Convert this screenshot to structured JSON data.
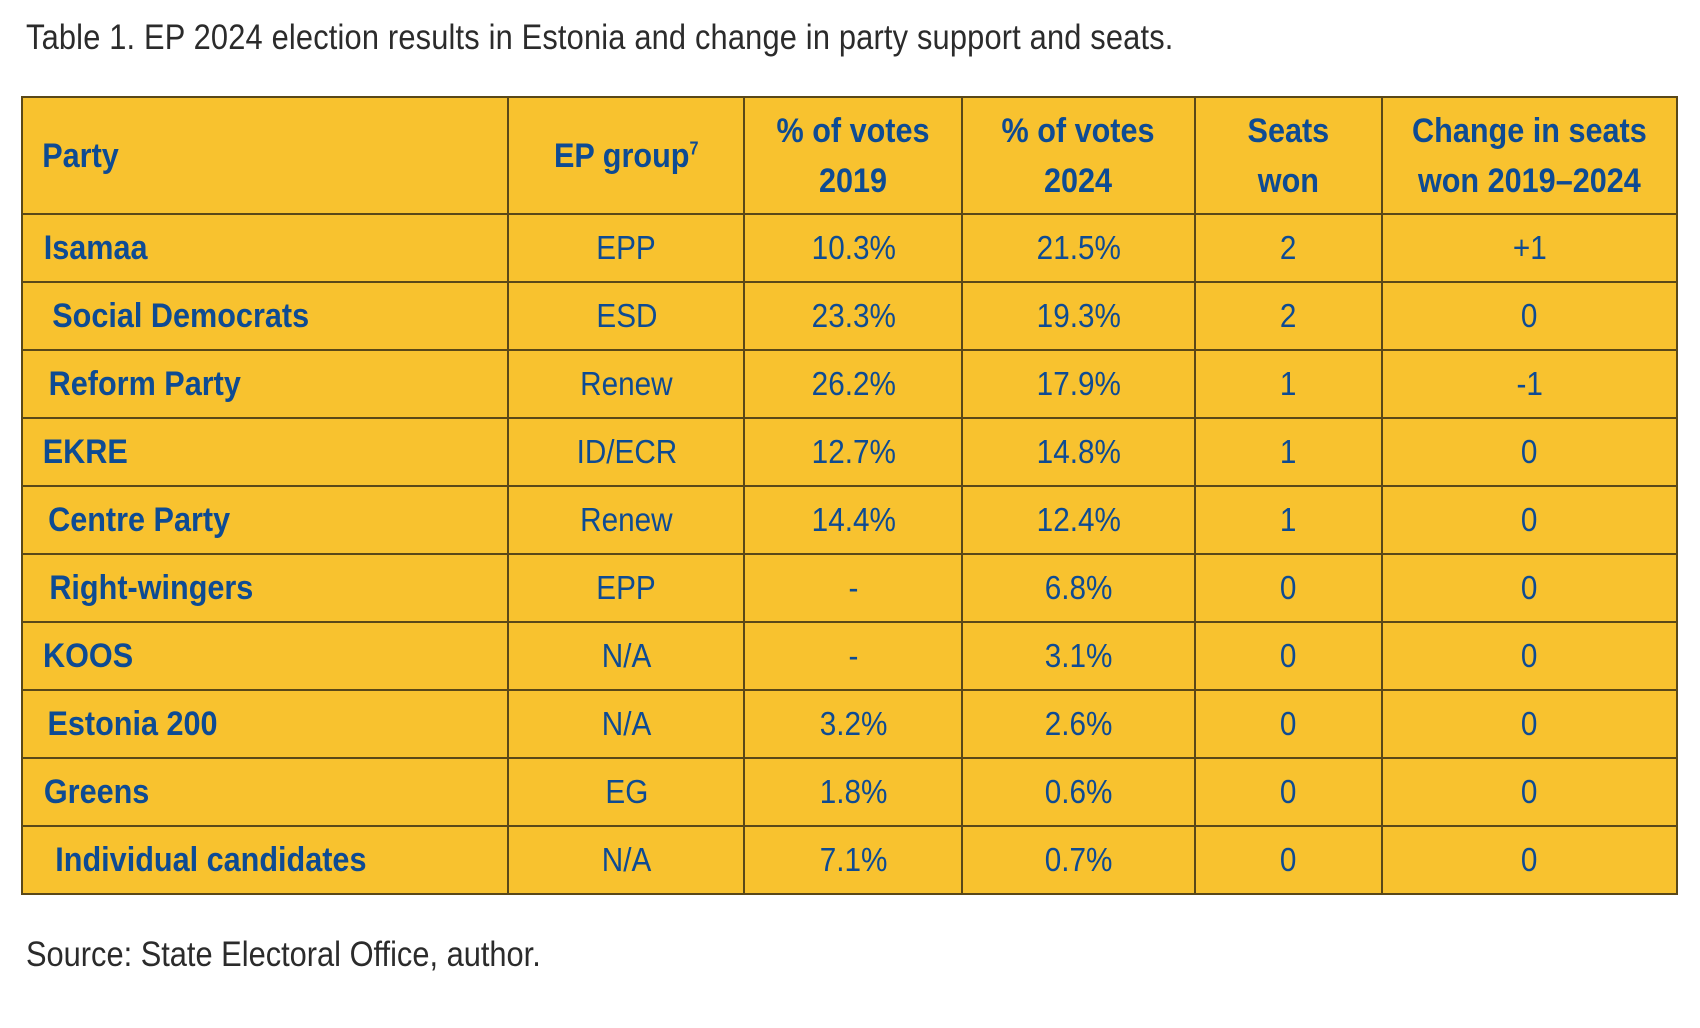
{
  "caption": "Table 1. EP 2024 election results in Estonia and change in party support and seats.",
  "source": "Source: State Electoral Office, author.",
  "colors": {
    "table_background": "#f8c22f",
    "text": "#0e4b93",
    "border": "#5a4818"
  },
  "table": {
    "headers": {
      "party": "Party",
      "ep_group": "EP group",
      "ep_group_footnote": "7",
      "votes_2019_line1": "% of votes",
      "votes_2019_line2": "2019",
      "votes_2024_line1": "% of votes",
      "votes_2024_line2": "2024",
      "seats_line1": "Seats",
      "seats_line2": "won",
      "change_line1": "Change in seats",
      "change_line2": "won 2019–2024"
    },
    "rows": [
      {
        "party": "Isamaa",
        "group": "EPP",
        "v2019": "10.3%",
        "v2024": "21.5%",
        "seats": "2",
        "change": "+1"
      },
      {
        "party": "Social Democrats",
        "group": "ESD",
        "v2019": "23.3%",
        "v2024": "19.3%",
        "seats": "2",
        "change": "0"
      },
      {
        "party": "Reform Party",
        "group": "Renew",
        "v2019": "26.2%",
        "v2024": "17.9%",
        "seats": "1",
        "change": "-1"
      },
      {
        "party": "EKRE",
        "group": "ID/ECR",
        "v2019": "12.7%",
        "v2024": "14.8%",
        "seats": "1",
        "change": "0"
      },
      {
        "party": "Centre Party",
        "group": "Renew",
        "v2019": "14.4%",
        "v2024": "12.4%",
        "seats": "1",
        "change": "0"
      },
      {
        "party": "Right-wingers",
        "group": "EPP",
        "v2019": "-",
        "v2024": "6.8%",
        "seats": "0",
        "change": "0"
      },
      {
        "party": "KOOS",
        "group": "N/A",
        "v2019": "-",
        "v2024": "3.1%",
        "seats": "0",
        "change": "0"
      },
      {
        "party": "Estonia 200",
        "group": "N/A",
        "v2019": "3.2%",
        "v2024": "2.6%",
        "seats": "0",
        "change": "0"
      },
      {
        "party": "Greens",
        "group": "EG",
        "v2019": "1.8%",
        "v2024": "0.6%",
        "seats": "0",
        "change": "0"
      },
      {
        "party": "Individual candidates",
        "group": "N/A",
        "v2019": "7.1%",
        "v2024": "0.7%",
        "seats": "0",
        "change": "0"
      }
    ]
  }
}
